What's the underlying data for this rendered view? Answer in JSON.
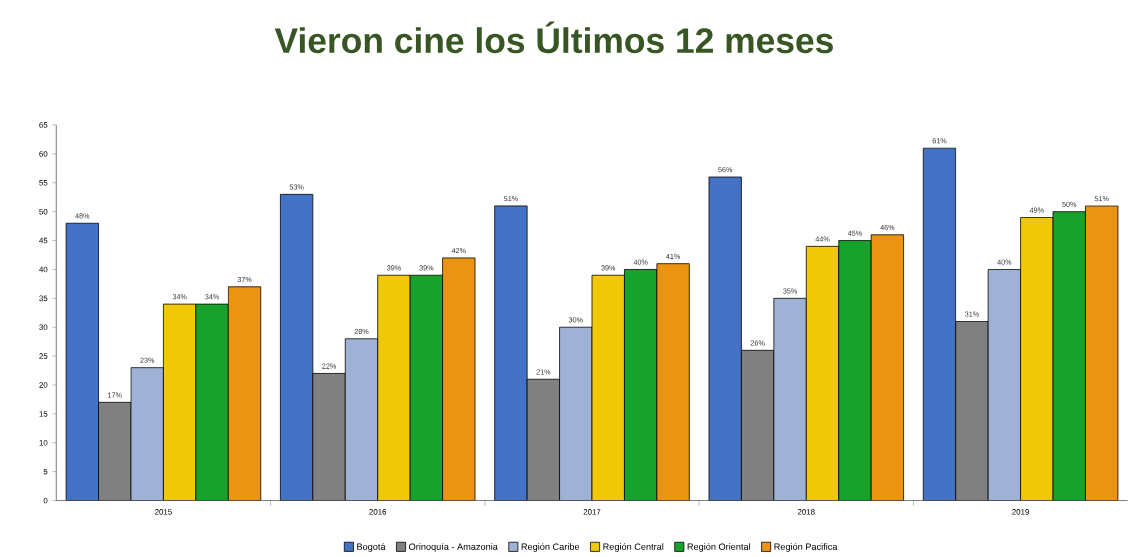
{
  "chart_data": {
    "type": "bar",
    "title": "Vieron cine los Últimos 12 meses",
    "categories": [
      "2015",
      "2016",
      "2017",
      "2018",
      "2019"
    ],
    "series": [
      {
        "name": "Bogotá",
        "color": "#4472c4",
        "values": [
          48,
          53,
          51,
          56,
          61
        ],
        "value_labels": [
          "48%",
          "53%",
          "51%",
          "56%",
          "61%"
        ]
      },
      {
        "name": "Orinoquía - Amazonia",
        "color": "#808080",
        "values": [
          17,
          22,
          21,
          26,
          31
        ],
        "value_labels": [
          "17%",
          "22%",
          "21%",
          "26%",
          "31%"
        ]
      },
      {
        "name": "Región Caribe",
        "color": "#9fb2d6",
        "values": [
          23,
          28,
          30,
          35,
          40
        ],
        "value_labels": [
          "23%",
          "28%",
          "30%",
          "35%",
          "40%"
        ]
      },
      {
        "name": "Región Central",
        "color": "#f0c808",
        "values": [
          34,
          39,
          39,
          44,
          49
        ],
        "value_labels": [
          "34%",
          "39%",
          "39%",
          "44%",
          "49%"
        ]
      },
      {
        "name": "Región Oriental",
        "color": "#17a22c",
        "values": [
          34,
          39,
          40,
          45,
          50
        ],
        "value_labels": [
          "34%",
          "39%",
          "40%",
          "45%",
          "50%"
        ]
      },
      {
        "name": "Región Pacifica",
        "color": "#eb9414",
        "values": [
          37,
          42,
          41,
          46,
          51
        ],
        "value_labels": [
          "37%",
          "42%",
          "41%",
          "46%",
          "51%"
        ]
      }
    ],
    "ylim": [
      0,
      65
    ],
    "yticks": [
      0,
      5,
      10,
      15,
      20,
      25,
      30,
      35,
      40,
      45,
      50,
      55,
      60,
      65
    ],
    "legend": "bottom"
  }
}
